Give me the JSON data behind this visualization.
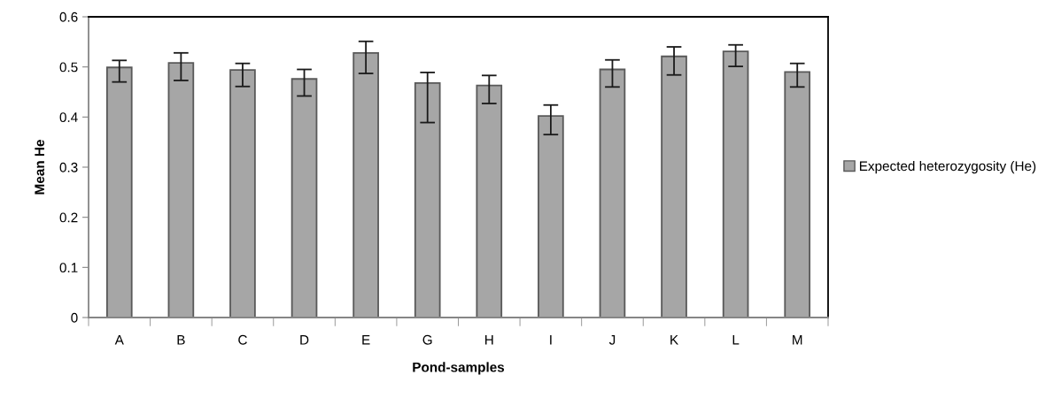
{
  "chart_data": {
    "type": "bar",
    "xlabel": "Pond-samples",
    "ylabel": "Mean He",
    "categories": [
      "A",
      "B",
      "C",
      "D",
      "E",
      "G",
      "H",
      "I",
      "J",
      "K",
      "L",
      "M"
    ],
    "series": [
      {
        "name": "Expected heterozygosity (He)",
        "color": "#a6a6a6",
        "values": [
          0.499,
          0.508,
          0.494,
          0.476,
          0.528,
          0.468,
          0.463,
          0.402,
          0.495,
          0.521,
          0.531,
          0.49
        ],
        "errors": [
          [
            0.47,
            0.513
          ],
          [
            0.473,
            0.528
          ],
          [
            0.461,
            0.507
          ],
          [
            0.442,
            0.495
          ],
          [
            0.487,
            0.551
          ],
          [
            0.389,
            0.489
          ],
          [
            0.427,
            0.483
          ],
          [
            0.365,
            0.424
          ],
          [
            0.46,
            0.514
          ],
          [
            0.484,
            0.54
          ],
          [
            0.501,
            0.544
          ],
          [
            0.46,
            0.507
          ]
        ]
      }
    ],
    "ylim": [
      0,
      0.6
    ],
    "yticks": [
      {
        "value": 0,
        "label": "0"
      },
      0.1,
      0.2,
      0.3,
      0.4,
      0.5,
      0.6
    ],
    "grid": false,
    "legend": "right"
  }
}
